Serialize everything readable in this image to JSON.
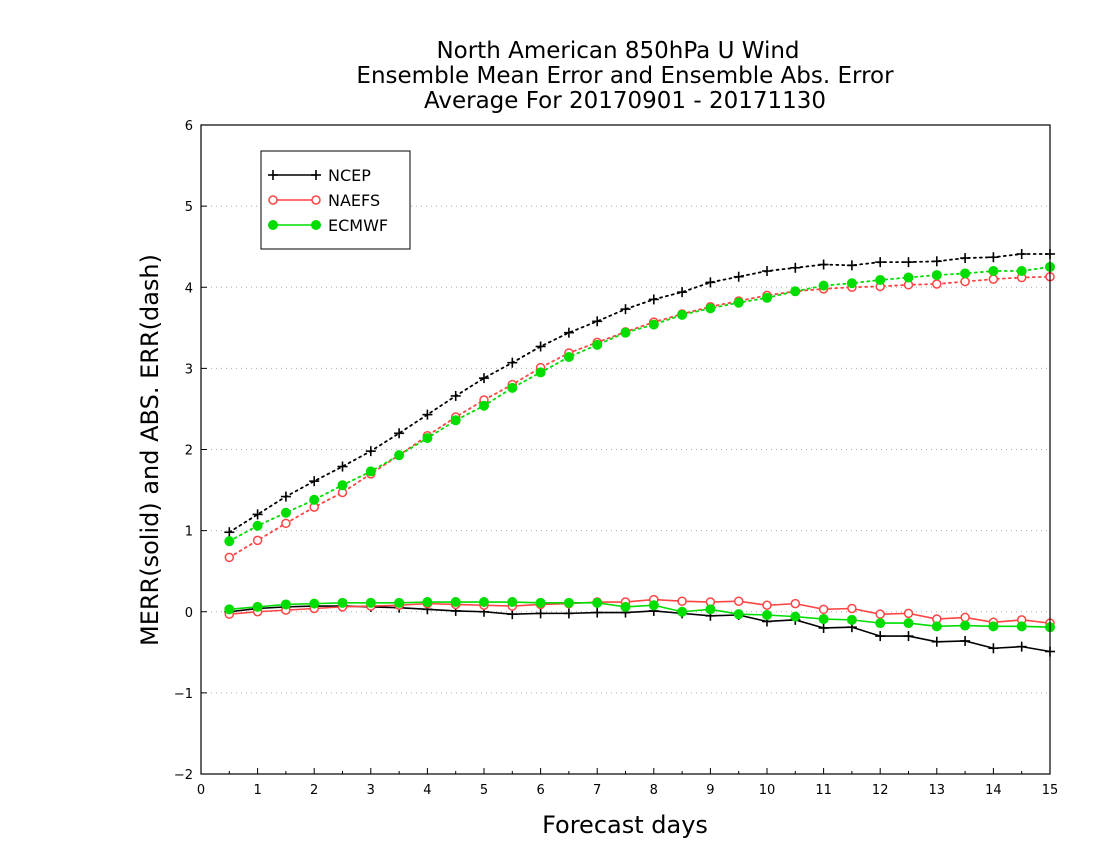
{
  "chart_data": {
    "type": "line",
    "title_lines": [
      "North American 850hPa U Wind",
      "Ensemble Mean Error and Ensemble Abs. Error",
      "Average For 20170901 - 20171130"
    ],
    "xlabel": "Forecast days",
    "ylabel": "MERR(solid) and ABS. ERR(dash)",
    "xlim": [
      0,
      15
    ],
    "ylim": [
      -2,
      6
    ],
    "xticks": [
      0,
      1,
      2,
      3,
      4,
      5,
      6,
      7,
      8,
      9,
      10,
      11,
      12,
      13,
      14,
      15
    ],
    "yticks": [
      -2,
      -1,
      0,
      1,
      2,
      3,
      4,
      5,
      6
    ],
    "ytick_labels": [
      "−2",
      "−1",
      "0",
      "1",
      "2",
      "3",
      "4",
      "5",
      "6"
    ],
    "grid": "horizontal dotted",
    "legend_position": "top-left",
    "x": [
      0.5,
      1,
      1.5,
      2,
      2.5,
      3,
      3.5,
      4,
      4.5,
      5,
      5.5,
      6,
      6.5,
      7,
      7.5,
      8,
      8.5,
      9,
      9.5,
      10,
      10.5,
      11,
      11.5,
      12,
      12.5,
      13,
      13.5,
      14,
      14.5,
      15
    ],
    "series": [
      {
        "name": "NCEP",
        "color": "#000000",
        "marker": "plus",
        "merr": [
          0.0,
          0.04,
          0.06,
          0.07,
          0.07,
          0.06,
          0.05,
          0.03,
          0.01,
          0.0,
          -0.03,
          -0.02,
          -0.02,
          -0.01,
          -0.01,
          0.01,
          -0.02,
          -0.05,
          -0.04,
          -0.12,
          -0.1,
          -0.2,
          -0.19,
          -0.3,
          -0.3,
          -0.37,
          -0.36,
          -0.45,
          -0.43,
          -0.49
        ],
        "abs_err": [
          0.98,
          1.2,
          1.42,
          1.61,
          1.79,
          1.98,
          2.2,
          2.43,
          2.66,
          2.88,
          3.07,
          3.27,
          3.44,
          3.58,
          3.73,
          3.85,
          3.94,
          4.06,
          4.13,
          4.2,
          4.24,
          4.28,
          4.27,
          4.31,
          4.31,
          4.32,
          4.36,
          4.37,
          4.41,
          4.41
        ]
      },
      {
        "name": "NAEFS",
        "color": "#ff4444",
        "marker": "open-circle",
        "merr": [
          -0.03,
          0.0,
          0.02,
          0.04,
          0.06,
          0.07,
          0.08,
          0.1,
          0.09,
          0.08,
          0.07,
          0.09,
          0.1,
          0.12,
          0.12,
          0.15,
          0.13,
          0.12,
          0.13,
          0.08,
          0.1,
          0.03,
          0.04,
          -0.03,
          -0.02,
          -0.09,
          -0.07,
          -0.13,
          -0.1,
          -0.14
        ],
        "abs_err": [
          0.67,
          0.88,
          1.09,
          1.29,
          1.47,
          1.7,
          1.93,
          2.17,
          2.4,
          2.61,
          2.8,
          3.01,
          3.19,
          3.32,
          3.45,
          3.57,
          3.67,
          3.76,
          3.83,
          3.9,
          3.95,
          3.98,
          4.0,
          4.01,
          4.03,
          4.04,
          4.07,
          4.1,
          4.12,
          4.13
        ]
      },
      {
        "name": "ECMWF",
        "color": "#00dd00",
        "marker": "filled-circle",
        "merr": [
          0.03,
          0.06,
          0.09,
          0.1,
          0.11,
          0.11,
          0.11,
          0.12,
          0.12,
          0.12,
          0.12,
          0.11,
          0.11,
          0.11,
          0.06,
          0.08,
          0.0,
          0.03,
          -0.03,
          -0.04,
          -0.06,
          -0.09,
          -0.1,
          -0.14,
          -0.14,
          -0.18,
          -0.17,
          -0.18,
          -0.18,
          -0.19
        ],
        "abs_err": [
          0.87,
          1.06,
          1.22,
          1.38,
          1.56,
          1.73,
          1.93,
          2.14,
          2.36,
          2.54,
          2.76,
          2.95,
          3.14,
          3.29,
          3.44,
          3.54,
          3.66,
          3.74,
          3.81,
          3.87,
          3.95,
          4.02,
          4.05,
          4.09,
          4.12,
          4.15,
          4.17,
          4.2,
          4.2,
          4.25
        ]
      }
    ]
  }
}
